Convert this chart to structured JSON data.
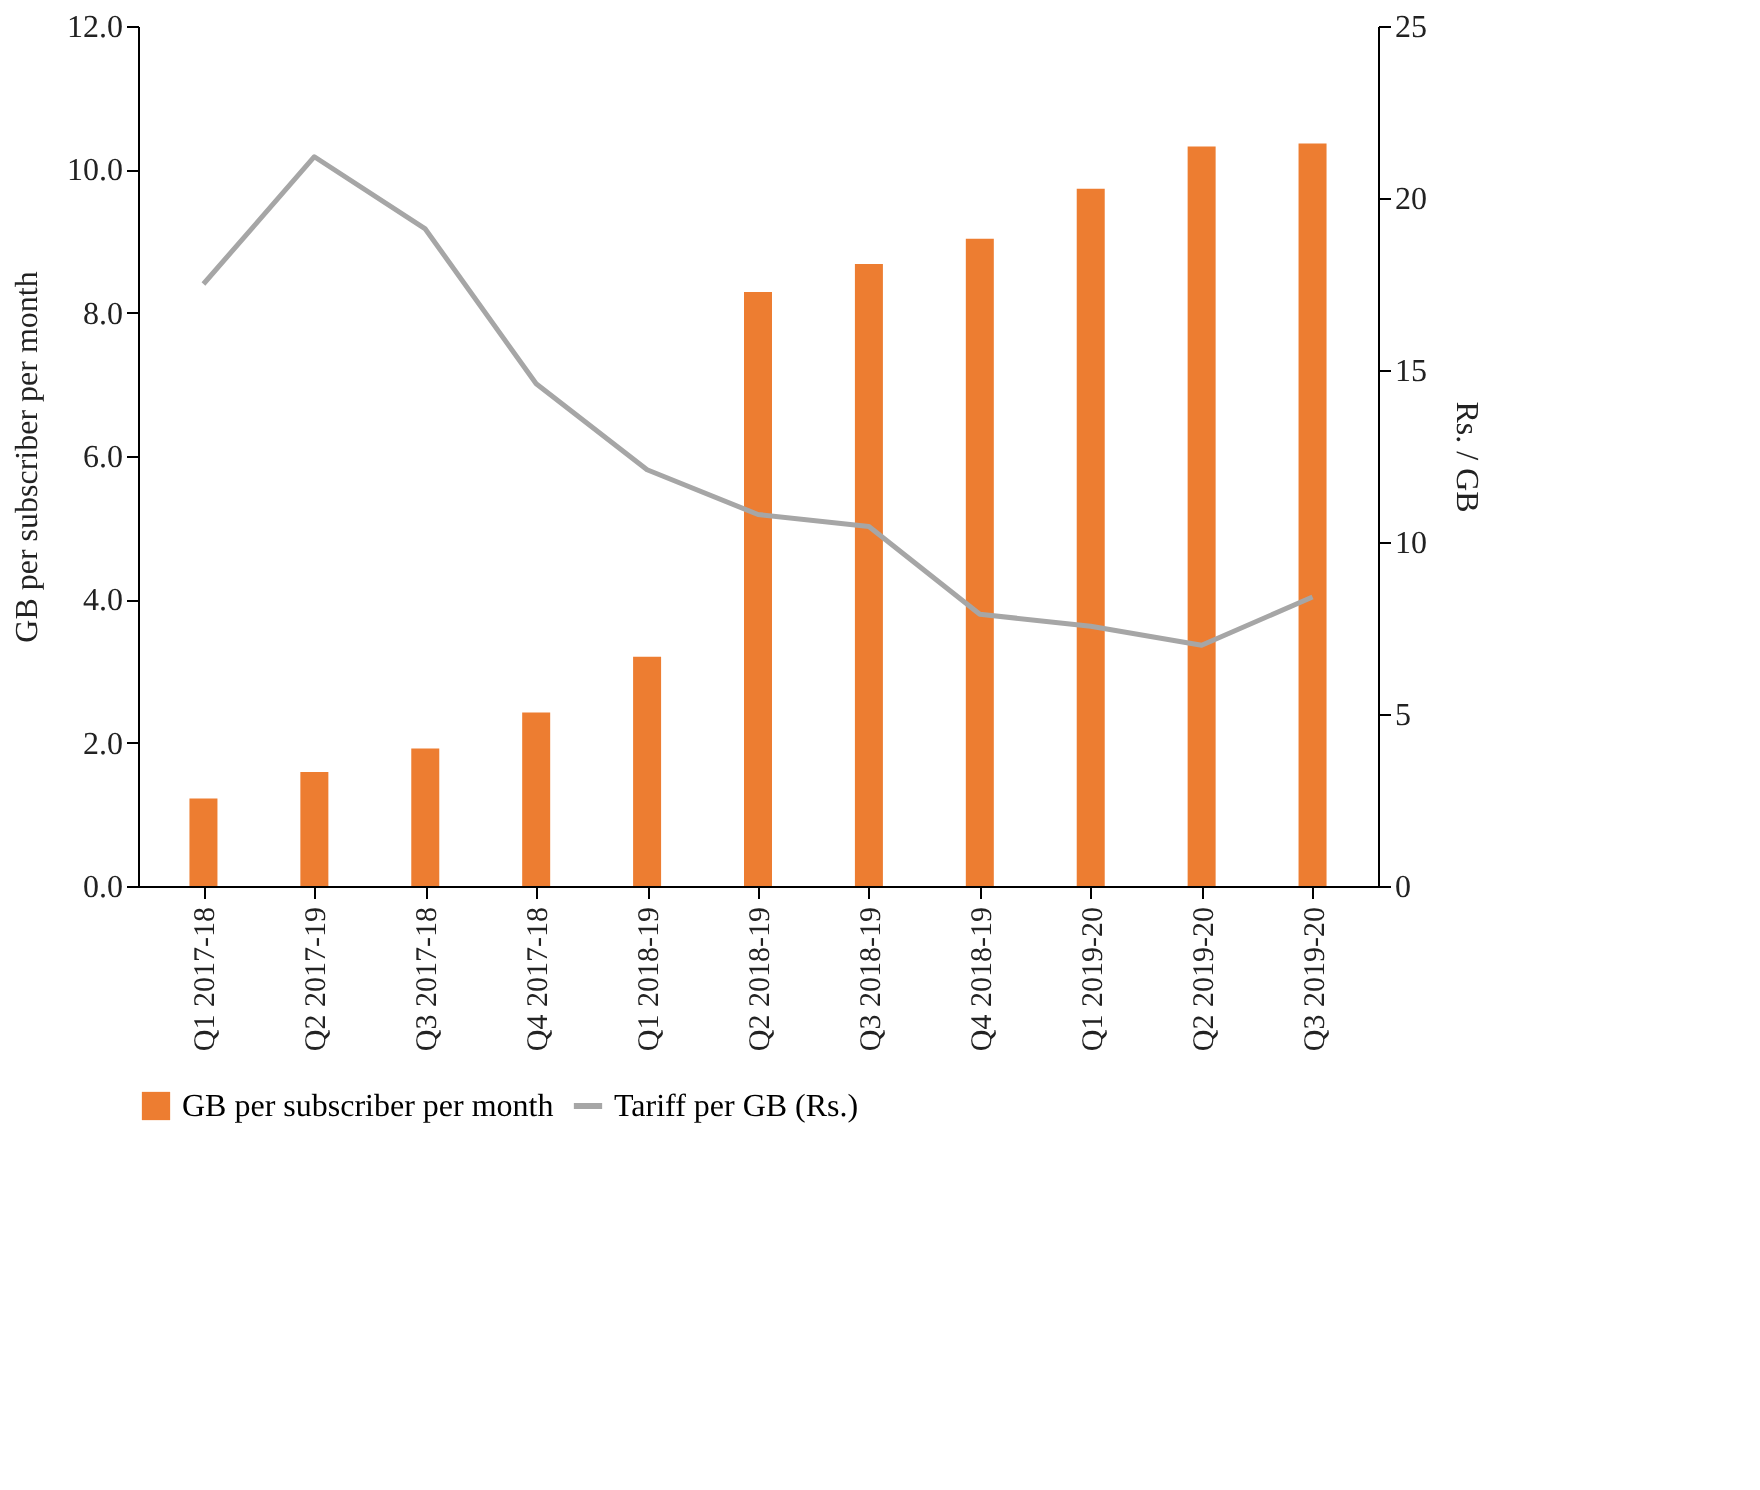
{
  "chart_data": {
    "type": "bar",
    "categories": [
      "Q1 2017-18",
      "Q2 2017-19",
      "Q3 2017-18",
      "Q4 2017-18",
      "Q1 2018-19",
      "Q2 2018-19",
      "Q3 2018-19",
      "Q4 2018-19",
      "Q1 2019-20",
      "Q2 2019-20",
      "Q3 2019-20"
    ],
    "series": [
      {
        "name": "GB per subscriber per month",
        "color": "#ed7d31",
        "values": [
          1.22,
          1.59,
          1.92,
          2.42,
          3.2,
          8.29,
          8.68,
          9.03,
          9.73,
          10.32,
          10.36
        ]
      },
      {
        "name": "Tariff per GB (Rs.)",
        "type": "line",
        "axis": "y2",
        "color": "#a6a6a6",
        "values": [
          17.5,
          21.2,
          19.1,
          14.6,
          12.1,
          10.8,
          10.45,
          7.9,
          7.55,
          7.0,
          8.4
        ]
      }
    ],
    "ylabel": "GB per subscriber per month",
    "y2label": "Rs. / GB",
    "ylim": [
      0,
      12
    ],
    "yticks": [
      {
        "value": 0,
        "label": "0.0"
      },
      {
        "value": 2,
        "label": "2.0"
      },
      {
        "value": 4,
        "label": "4.0"
      },
      {
        "value": 6,
        "label": "6.0"
      },
      {
        "value": 8,
        "label": "8.0"
      },
      {
        "value": 10,
        "label": "10.0"
      },
      {
        "value": 12,
        "label": "12.0"
      }
    ],
    "y2lim": [
      0,
      25
    ],
    "y2ticks": [
      0,
      5,
      10,
      15,
      20,
      25
    ],
    "grid": false,
    "legend": "bottom",
    "marker": "none",
    "line_style": "solid"
  }
}
